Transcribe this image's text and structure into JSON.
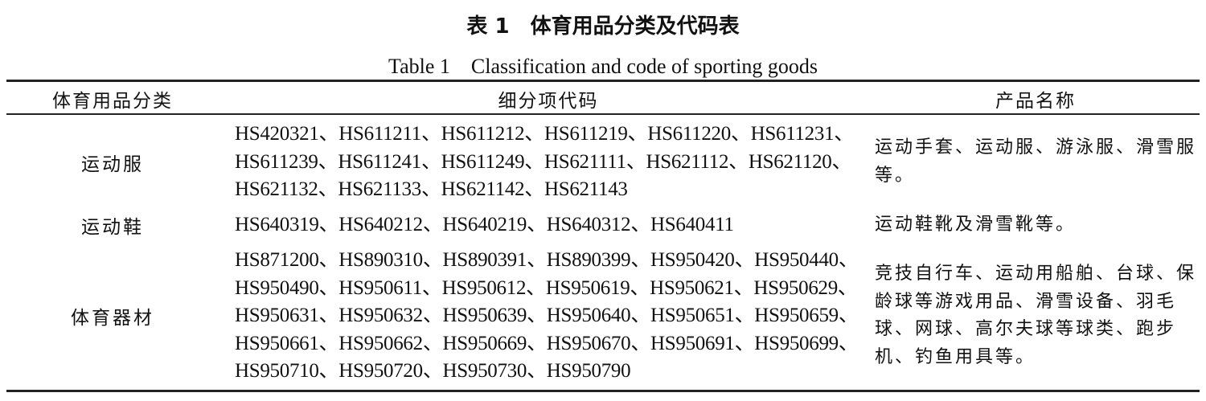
{
  "title": "表 1　体育用品分类及代码表",
  "subtitle": "Table 1　Classification and code of sporting goods",
  "headers": [
    "体育用品分类",
    "细分项代码",
    "产品名称"
  ],
  "rows": [
    {
      "category": "运动服",
      "codes": [
        "HS420321、HS611211、HS611212、HS611219、HS611220、HS611231、",
        "HS611239、HS611241、HS611249、HS621111、HS621112、HS621120、",
        "HS621132、HS621133、HS621142、HS621143"
      ],
      "products": [
        "运动手套、运动服、游泳服、滑雪服",
        "等。"
      ]
    },
    {
      "category": "运动鞋",
      "codes": [
        "HS640319、HS640212、HS640219、HS640312、HS640411"
      ],
      "products": [
        "运动鞋靴及滑雪靴等。"
      ]
    },
    {
      "category": "体育器材",
      "codes": [
        "HS871200、HS890310、HS890391、HS890399、HS950420、HS950440、",
        "HS950490、HS950611、HS950612、HS950619、HS950621、HS950629、",
        "HS950631、HS950632、HS950639、HS950640、HS950651、HS950659、",
        "HS950661、HS950662、HS950669、HS950670、HS950691、HS950699、",
        "HS950710、HS950720、HS950730、HS950790"
      ],
      "products": [
        "竞技自行车、运动用船舶、台球、保",
        "龄球等游戏用品、滑雪设备、羽毛",
        "球、网球、高尔夫球等球类、跑步",
        "机、钓鱼用具等。"
      ]
    }
  ]
}
